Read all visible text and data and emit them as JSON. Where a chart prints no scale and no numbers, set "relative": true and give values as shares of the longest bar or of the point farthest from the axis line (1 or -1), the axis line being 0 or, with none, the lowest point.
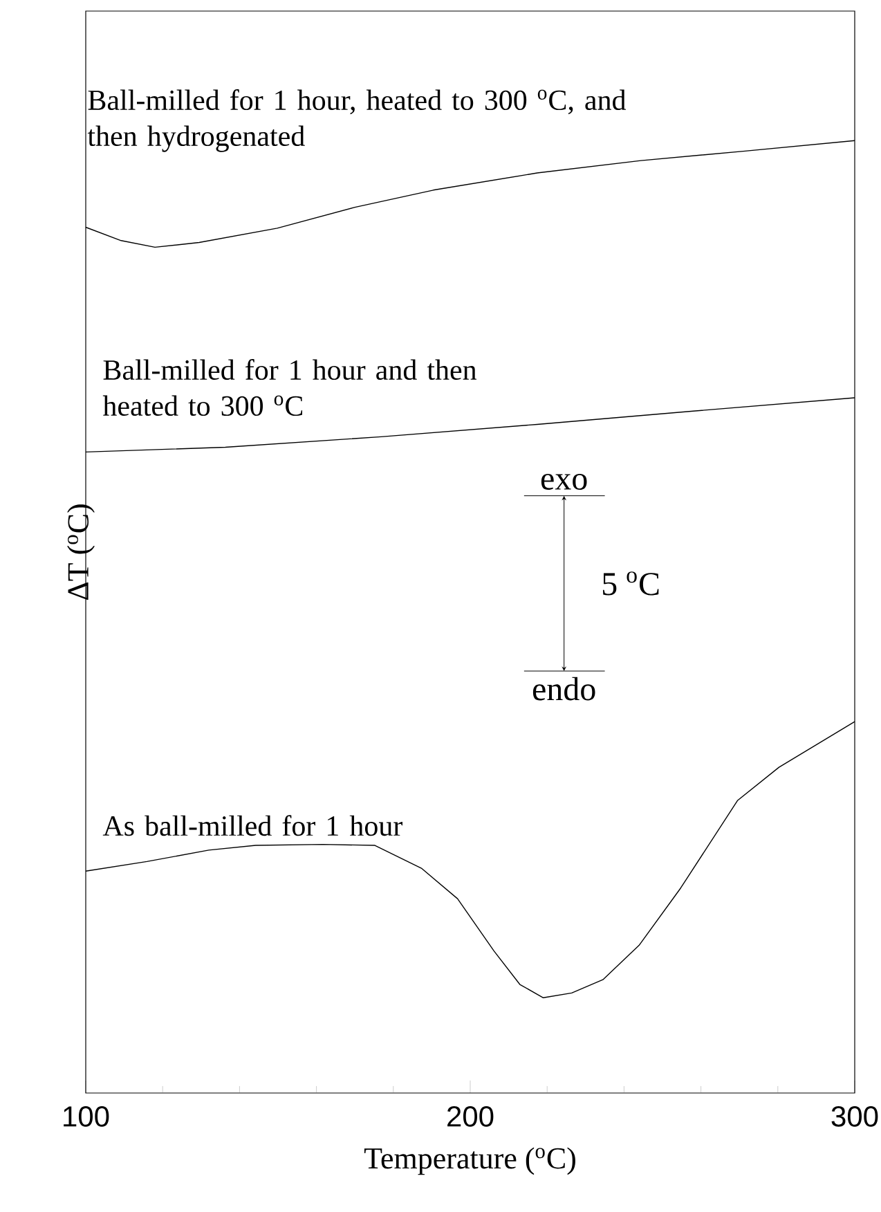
{
  "chart_data": {
    "type": "line",
    "relative": true,
    "xlabel": "Temperature ($^{o}$C)",
    "ylabel": "ΔT ($^{o}$C)",
    "xlim": [
      100,
      300
    ],
    "xticks": [
      100,
      {
        "value": 120,
        "label": null
      },
      {
        "value": 140,
        "label": null
      },
      {
        "value": 160,
        "label": null
      },
      {
        "value": 180,
        "label": null
      },
      200,
      {
        "value": 220,
        "label": null
      },
      {
        "value": 240,
        "label": null
      },
      {
        "value": 260,
        "label": null
      },
      {
        "value": 280,
        "label": null
      },
      300
    ],
    "series": [
      {
        "name": "Ball-milled for 1 hour, heated to 300 $^{o}$C, and then hydrogenated",
        "color": "#000000",
        "x": [
          100,
          109.2,
          118,
          129.5,
          149.8,
          170,
          190.4,
          217.4,
          244.4,
          271.5,
          300
        ],
        "values": [
          0.909,
          0.895,
          0.888,
          0.893,
          0.908,
          0.93,
          0.948,
          0.966,
          0.979,
          0.989,
          1
        ]
      },
      {
        "name": "Ball-milled for 1 hour and then heated to 300 $^{o}$C",
        "color": "#000000",
        "x": [
          100,
          136.3,
          176.8,
          217.4,
          258,
          300
        ],
        "values": [
          0.673,
          0.678,
          0.689,
          0.702,
          0.716,
          0.73
        ]
      },
      {
        "name": "As ball-milled for 1 hour",
        "color": "#000000",
        "x": [
          100,
          115.9,
          132,
          144.2,
          161.7,
          175.2,
          187.3,
          196.7,
          206.2,
          212.9,
          219,
          226.4,
          234.5,
          243.9,
          254.7,
          269.5,
          280.3,
          300
        ],
        "values": [
          0.233,
          0.243,
          0.255,
          0.26,
          0.261,
          0.26,
          0.236,
          0.204,
          0.149,
          0.114,
          0.1,
          0.105,
          0.119,
          0.155,
          0.215,
          0.307,
          0.342,
          0.39
        ]
      }
    ],
    "annotations": [
      "exo",
      "endo",
      "5 $^{o}$C"
    ]
  }
}
